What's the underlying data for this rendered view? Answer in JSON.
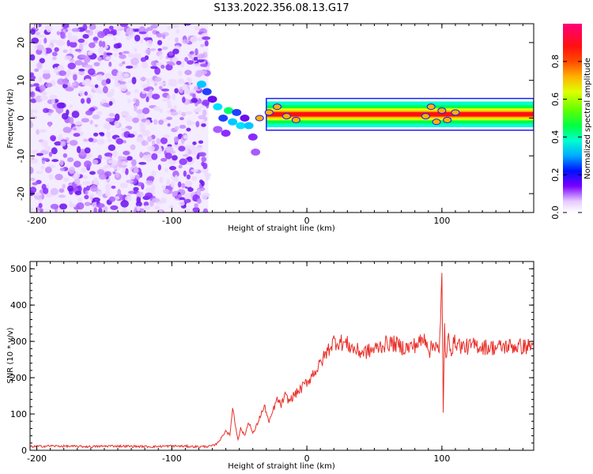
{
  "title": "S133.2022.356.08.13.G17",
  "chart_data": [
    {
      "type": "heatmap",
      "xlabel": "Height of straight line (km)",
      "ylabel": "Frequency (Hz)",
      "xlim": [
        -205,
        168
      ],
      "ylim": [
        -25,
        25
      ],
      "x_ticks": [
        -200,
        -100,
        0,
        100
      ],
      "y_ticks": [
        -20,
        -10,
        0,
        10,
        20
      ],
      "description_regions": {
        "noise_region_x_range": [
          -205,
          -73
        ],
        "signal_frequency_hz": 1
      },
      "colorbar": {
        "label": "Normalized spectral amplitude",
        "range": [
          0.0,
          1.0
        ],
        "ticks": [
          0.0,
          0.2,
          0.4,
          0.6,
          0.8
        ]
      }
    },
    {
      "type": "line",
      "xlabel": "Height of straight line (km)",
      "ylabel": "SNR (10 * v/v)",
      "xlim": [
        -205,
        168
      ],
      "ylim": [
        0,
        520
      ],
      "x_ticks": [
        -200,
        -100,
        0,
        100
      ],
      "y_ticks": [
        0,
        100,
        200,
        300,
        400,
        500
      ],
      "color": "#e8302a",
      "series": [
        {
          "x": [
            -205,
            -190,
            -175,
            -160,
            -145,
            -130,
            -115,
            -100,
            -90,
            -80,
            -72,
            -68,
            -64,
            -60,
            -57,
            -55,
            -53,
            -51,
            -49,
            -46,
            -43,
            -40,
            -37,
            -34,
            -31,
            -28,
            -25,
            -22,
            -19,
            -16,
            -13,
            -10,
            -7,
            -4,
            -1,
            2,
            5,
            8,
            11,
            14,
            17,
            20,
            25,
            30,
            35,
            40,
            45,
            50,
            55,
            60,
            65,
            70,
            75,
            80,
            85,
            88,
            91,
            94,
            96,
            98,
            99,
            100,
            101,
            102,
            103,
            105,
            107,
            110,
            115,
            120,
            125,
            130,
            140,
            150,
            160,
            168
          ],
          "y": [
            10,
            12,
            11,
            10,
            12,
            11,
            10,
            12,
            11,
            10,
            11,
            14,
            30,
            55,
            40,
            120,
            70,
            30,
            60,
            40,
            80,
            45,
            70,
            100,
            120,
            75,
            110,
            140,
            125,
            150,
            135,
            150,
            160,
            170,
            185,
            195,
            215,
            225,
            245,
            265,
            285,
            300,
            298,
            292,
            278,
            270,
            272,
            278,
            288,
            295,
            293,
            285,
            282,
            290,
            300,
            310,
            275,
            290,
            300,
            260,
            350,
            480,
            110,
            340,
            240,
            310,
            280,
            300,
            285,
            285,
            290,
            285,
            283,
            287,
            285,
            288
          ]
        }
      ]
    }
  ]
}
